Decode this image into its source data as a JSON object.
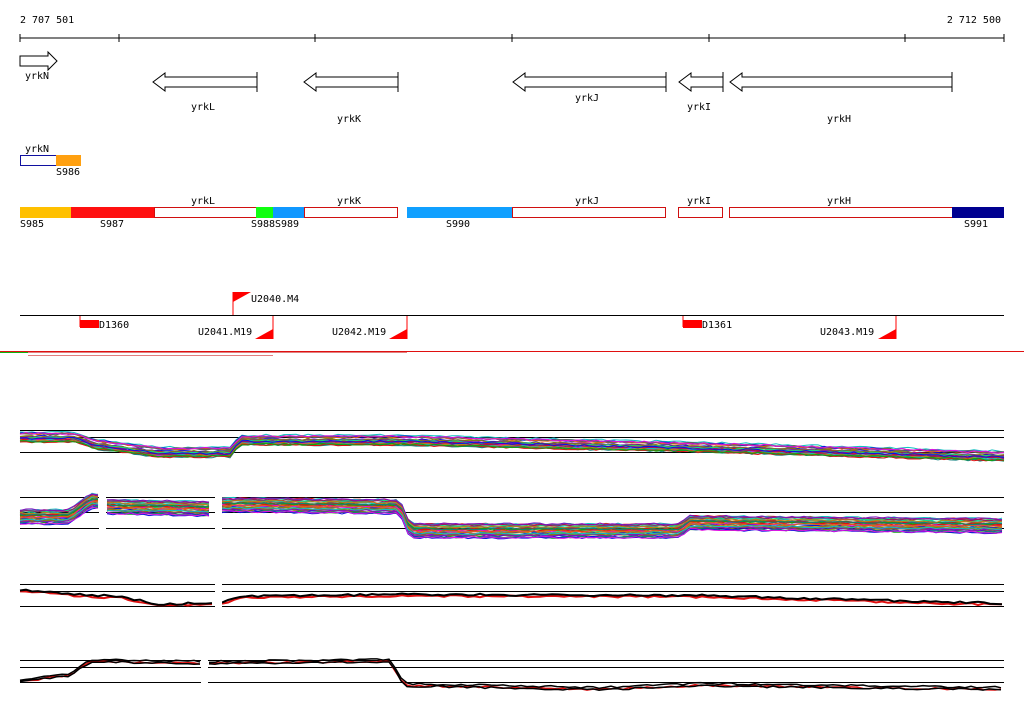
{
  "ruler": {
    "start_label": "2 707 501",
    "end_label": "2 712 500"
  },
  "genes": [
    {
      "label": "yrkN",
      "strand": "+"
    },
    {
      "label": "yrkL",
      "strand": "-"
    },
    {
      "label": "yrkK",
      "strand": "-"
    },
    {
      "label": "yrkJ",
      "strand": "-"
    },
    {
      "label": "yrkI",
      "strand": "-"
    },
    {
      "label": "yrkH",
      "strand": "-"
    }
  ],
  "segment_labels": {
    "yrkN": "yrkN",
    "s986": "S986",
    "yrkL": "yrkL",
    "yrkK": "yrkK",
    "yrkJ": "yrkJ",
    "yrkI": "yrkI",
    "yrkH": "yrkH",
    "s985": "S985",
    "s987": "S987",
    "s988": "S988",
    "s989": "S989",
    "s990": "S990",
    "s991": "S991"
  },
  "segment_colors": {
    "s985": "#ffc000",
    "s986": "#ffa010",
    "s987": "#ff1010",
    "s988": "#10ff10",
    "s989": "#1098ff",
    "s990": "#10a0ff",
    "s991": "#000090",
    "outline_red": "#d01010",
    "outline_blue": "#1010a0"
  },
  "features": {
    "u2040": "U2040.M4",
    "d1360": "D1360",
    "u2041": "U2041.M19",
    "u2042": "U2042.M19",
    "d1361": "D1361",
    "u2043": "U2043.M19"
  },
  "track_colors": {
    "flag": "#ff0000",
    "line_red": "#e01010",
    "line_black": "#000000"
  }
}
